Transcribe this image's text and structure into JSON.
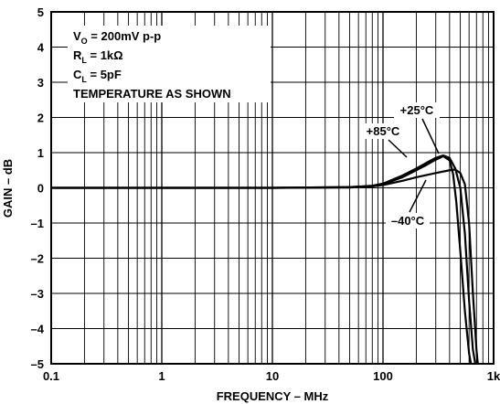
{
  "chart_data": {
    "type": "line",
    "xlabel": "FREQUENCY – MHz",
    "ylabel": "GAIN – dB",
    "xscale": "log",
    "xlim": [
      0.1,
      1000
    ],
    "ylim": [
      -5,
      5
    ],
    "grid": true,
    "x_tick_labels": [
      "0.1",
      "1",
      "10",
      "100",
      "1k"
    ],
    "y_tick_labels": [
      "5",
      "4",
      "3",
      "2",
      "1",
      "0",
      "–1",
      "–2",
      "–3",
      "–4",
      "–5"
    ],
    "conditions": {
      "line1_main": "V",
      "line1_sub": "O",
      "line1_rest": " = 200mV p-p",
      "line2_main": "R",
      "line2_sub": "L",
      "line2_rest": " = 1kΩ",
      "line3_main": "C",
      "line3_sub": "L",
      "line3_rest": " = 5pF",
      "line4": "TEMPERATURE AS SHOWN"
    },
    "series": [
      {
        "name": "+25°C",
        "x": [
          0.1,
          1,
          10,
          50,
          80,
          100,
          150,
          200,
          250,
          300,
          350,
          400,
          450,
          500,
          550,
          600,
          650,
          700
        ],
        "y": [
          0,
          0,
          0,
          0.02,
          0.06,
          0.12,
          0.35,
          0.55,
          0.72,
          0.85,
          0.92,
          0.85,
          0.55,
          0,
          -1.3,
          -3.2,
          -4.6,
          -5.2
        ]
      },
      {
        "name": "+85°C",
        "x": [
          0.1,
          1,
          10,
          50,
          80,
          100,
          150,
          200,
          250,
          300,
          350,
          400,
          430,
          460,
          500,
          550,
          600,
          640
        ],
        "y": [
          0,
          0,
          0,
          0.02,
          0.05,
          0.1,
          0.3,
          0.5,
          0.66,
          0.8,
          0.9,
          0.78,
          0.4,
          -0.4,
          -1.8,
          -3.5,
          -4.7,
          -5.2
        ]
      },
      {
        "name": "–40°C",
        "x": [
          0.1,
          1,
          10,
          50,
          80,
          100,
          150,
          200,
          300,
          400,
          450,
          500,
          550,
          600,
          650,
          700,
          730
        ],
        "y": [
          0,
          0,
          0,
          0.01,
          0.04,
          0.08,
          0.2,
          0.3,
          0.42,
          0.5,
          0.52,
          0.42,
          0.1,
          -1.0,
          -3.0,
          -4.6,
          -5.2
        ]
      }
    ],
    "curve_labels": [
      "+25°C",
      "+85°C",
      "–40°C"
    ]
  }
}
